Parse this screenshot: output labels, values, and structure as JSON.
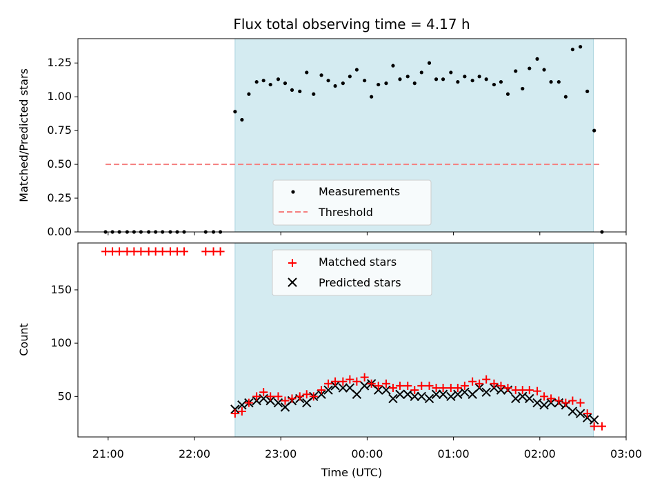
{
  "title": "Flux total observing time = 4.17 h",
  "xlabel": "Time (UTC)",
  "x_ticks": [
    "21:00",
    "22:00",
    "23:00",
    "00:00",
    "01:00",
    "02:00",
    "03:00"
  ],
  "colors": {
    "observing_window": "#d4ebf1",
    "measurements": "#000000",
    "threshold": "#f57f7f",
    "matched": "#ff0000",
    "predicted": "#000000"
  },
  "chart_data": [
    {
      "type": "scatter",
      "ylabel": "Matched/Predicted stars",
      "xlim_hours": [
        20.65,
        27.0
      ],
      "ylim": [
        0,
        1.43
      ],
      "y_ticks": [
        "0.00",
        "0.25",
        "0.50",
        "0.75",
        "1.00",
        "1.25"
      ],
      "shaded_region_hours": [
        22.47,
        26.62
      ],
      "legend": {
        "placement": "lower center",
        "entries": [
          "Measurements",
          "Threshold"
        ]
      },
      "threshold": {
        "name": "Threshold",
        "value": 0.5,
        "x_range_hours": [
          20.97,
          26.72
        ]
      },
      "measurements": {
        "name": "Measurements",
        "x_hours": [
          20.97,
          21.05,
          21.13,
          21.22,
          21.3,
          21.38,
          21.47,
          21.55,
          21.63,
          21.72,
          21.8,
          21.88,
          22.13,
          22.22,
          22.3,
          22.47,
          22.55,
          22.63,
          22.72,
          22.8,
          22.88,
          22.97,
          23.05,
          23.13,
          23.22,
          23.3,
          23.38,
          23.47,
          23.55,
          23.63,
          23.72,
          23.8,
          23.88,
          23.97,
          24.05,
          24.13,
          24.22,
          24.3,
          24.38,
          24.47,
          24.55,
          24.63,
          24.72,
          24.8,
          24.88,
          24.97,
          25.05,
          25.13,
          25.22,
          25.3,
          25.38,
          25.47,
          25.55,
          25.63,
          25.72,
          25.8,
          25.88,
          25.97,
          26.05,
          26.13,
          26.22,
          26.3,
          26.38,
          26.47,
          26.55,
          26.63,
          26.72
        ],
        "y": [
          0,
          0,
          0,
          0,
          0,
          0,
          0,
          0,
          0,
          0,
          0,
          0,
          0,
          0,
          0,
          0.89,
          0.83,
          1.02,
          1.11,
          1.12,
          1.09,
          1.13,
          1.1,
          1.05,
          1.04,
          1.18,
          1.02,
          1.16,
          1.12,
          1.08,
          1.1,
          1.15,
          1.2,
          1.12,
          1.0,
          1.09,
          1.1,
          1.23,
          1.13,
          1.15,
          1.1,
          1.18,
          1.25,
          1.13,
          1.13,
          1.18,
          1.11,
          1.15,
          1.12,
          1.15,
          1.13,
          1.09,
          1.11,
          1.02,
          1.19,
          1.06,
          1.21,
          1.28,
          1.2,
          1.11,
          1.11,
          1.0,
          1.35,
          1.37,
          1.04,
          0.75,
          0
        ]
      }
    },
    {
      "type": "scatter",
      "ylabel": "Count",
      "xlabel": "Time (UTC)",
      "xlim_hours": [
        20.65,
        27.0
      ],
      "ylim": [
        12,
        194
      ],
      "y_ticks": [
        "50",
        "100",
        "150"
      ],
      "y_tick_values": [
        50,
        100,
        150
      ],
      "shaded_region_hours": [
        22.47,
        26.62
      ],
      "legend": {
        "placement": "upper center",
        "entries": [
          "Matched stars",
          "Predicted stars"
        ]
      },
      "series": [
        {
          "name": "Matched stars",
          "marker": "+",
          "x_hours": [
            20.97,
            21.05,
            21.13,
            21.22,
            21.3,
            21.38,
            21.47,
            21.55,
            21.63,
            21.72,
            21.8,
            21.88,
            22.13,
            22.22,
            22.3,
            22.47,
            22.55,
            22.63,
            22.72,
            22.8,
            22.88,
            22.97,
            23.05,
            23.13,
            23.22,
            23.3,
            23.38,
            23.47,
            23.55,
            23.63,
            23.72,
            23.8,
            23.88,
            23.97,
            24.05,
            24.13,
            24.22,
            24.3,
            24.38,
            24.47,
            24.55,
            24.63,
            24.72,
            24.8,
            24.88,
            24.97,
            25.05,
            25.13,
            25.22,
            25.3,
            25.38,
            25.47,
            25.55,
            25.63,
            25.72,
            25.8,
            25.88,
            25.97,
            26.05,
            26.13,
            26.22,
            26.3,
            26.38,
            26.47,
            26.55,
            26.63,
            26.72
          ],
          "y": [
            186,
            186,
            186,
            186,
            186,
            186,
            186,
            186,
            186,
            186,
            186,
            186,
            186,
            186,
            186,
            34,
            36,
            44,
            50,
            54,
            50,
            50,
            46,
            48,
            50,
            52,
            50,
            56,
            62,
            64,
            64,
            66,
            64,
            68,
            62,
            60,
            62,
            58,
            60,
            60,
            56,
            60,
            60,
            58,
            58,
            58,
            58,
            60,
            64,
            62,
            66,
            62,
            60,
            58,
            56,
            56,
            56,
            55,
            50,
            48,
            46,
            44,
            46,
            44,
            34,
            22,
            22
          ]
        },
        {
          "name": "Predicted stars",
          "marker": "x",
          "x_hours": [
            22.47,
            22.55,
            22.63,
            22.72,
            22.8,
            22.88,
            22.97,
            23.05,
            23.13,
            23.22,
            23.3,
            23.38,
            23.47,
            23.55,
            23.63,
            23.72,
            23.8,
            23.88,
            23.97,
            24.05,
            24.13,
            24.22,
            24.3,
            24.38,
            24.47,
            24.55,
            24.63,
            24.72,
            24.8,
            24.88,
            24.97,
            25.05,
            25.13,
            25.22,
            25.3,
            25.38,
            25.47,
            25.55,
            25.63,
            25.72,
            25.8,
            25.88,
            25.97,
            26.05,
            26.13,
            26.22,
            26.3,
            26.38,
            26.47,
            26.55,
            26.63
          ],
          "y": [
            38,
            42,
            44,
            46,
            48,
            46,
            44,
            40,
            46,
            48,
            44,
            50,
            52,
            56,
            60,
            58,
            58,
            52,
            60,
            62,
            56,
            56,
            48,
            52,
            52,
            50,
            50,
            48,
            52,
            52,
            50,
            52,
            54,
            52,
            58,
            54,
            58,
            56,
            56,
            48,
            50,
            48,
            44,
            42,
            44,
            44,
            42,
            36,
            34,
            30,
            28
          ]
        }
      ]
    }
  ]
}
